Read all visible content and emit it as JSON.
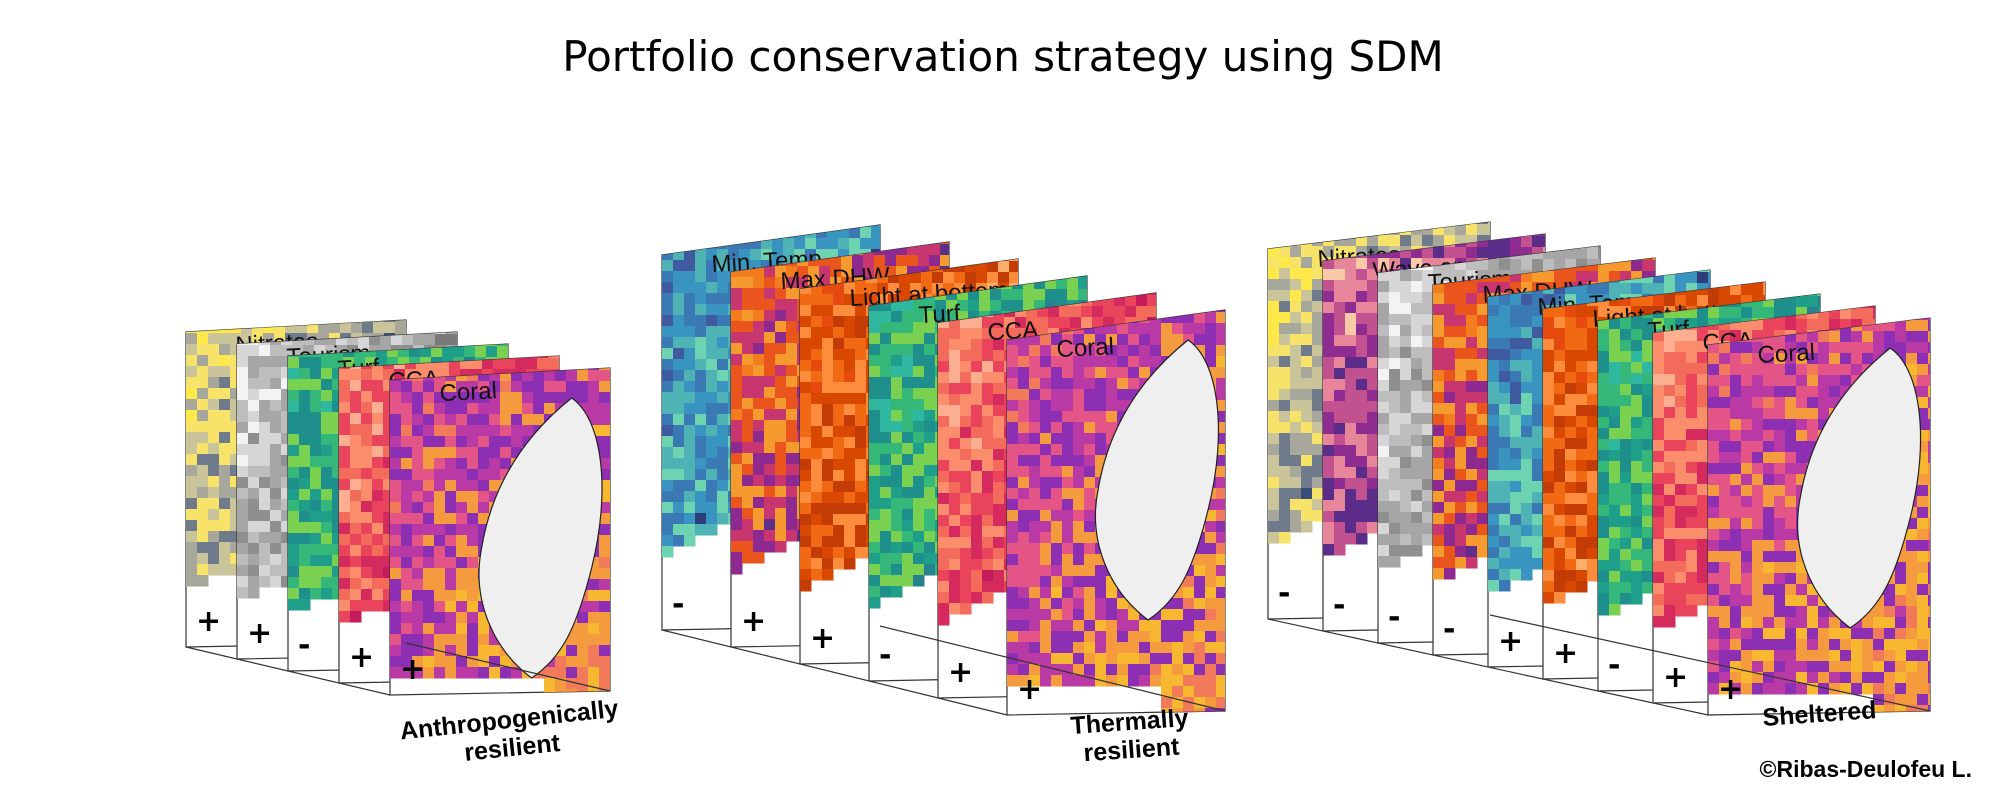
{
  "title": "Portfolio conservation strategy using SDM",
  "credit": "©Ribas-Deulofeu L.",
  "palettes": {
    "Nitrates": [
      "#ffe94a",
      "#f7e36a",
      "#c9c49a",
      "#a8a79c",
      "#6f7a8a",
      "#3a4d78"
    ],
    "Tourism": [
      "#f3f3f3",
      "#d6d6d6",
      "#bdbdbd",
      "#a6a6a6",
      "#8f8f8f",
      "#7a7a7a"
    ],
    "Turf": [
      "#2fb7a0",
      "#1e8f8a",
      "#35b779",
      "#7ad151",
      "#1f9e89",
      "#26828e"
    ],
    "CCA": [
      "#fcae91",
      "#fb8d6c",
      "#f26b5b",
      "#e9445c",
      "#d42a5e",
      "#c31b5b"
    ],
    "Coral": [
      "#f07a5a",
      "#e35487",
      "#b93aa4",
      "#8d2fb3",
      "#f39b3e",
      "#f7b731"
    ],
    "Min. Temp.": [
      "#3f5a9e",
      "#3b79b5",
      "#3a94c0",
      "#4fb3b6",
      "#6dd3b0",
      "#2c3f7a"
    ],
    "Max DHW": [
      "#f27c1e",
      "#e9551d",
      "#f59a2f",
      "#c7366e",
      "#8e2a8f",
      "#5d2f8a"
    ],
    "Light at bottom": [
      "#e64a0f",
      "#f16913",
      "#fd8d3c",
      "#d94801",
      "#c43c05",
      "#fdae6b"
    ],
    "Wave energy": [
      "#f9c9a8",
      "#e7869a",
      "#c2518f",
      "#8e2c8f",
      "#5b2c88",
      "#f6a77f"
    ]
  },
  "groups": [
    {
      "caption": [
        "Anthropogenically",
        "resilient"
      ],
      "layers": [
        {
          "label": "Nitrates",
          "sign": "+"
        },
        {
          "label": "Tourism",
          "sign": "+"
        },
        {
          "label": "Turf",
          "sign": "-"
        },
        {
          "label": "CCA",
          "sign": "+"
        },
        {
          "label": "Coral",
          "sign": "+"
        }
      ]
    },
    {
      "caption": [
        "Thermally",
        "resilient"
      ],
      "layers": [
        {
          "label": "Min. Temp.",
          "sign": "-"
        },
        {
          "label": "Max DHW",
          "sign": "+"
        },
        {
          "label": "Light at bottom",
          "sign": "+"
        },
        {
          "label": "Turf",
          "sign": "-"
        },
        {
          "label": "CCA",
          "sign": "+"
        },
        {
          "label": "Coral",
          "sign": "+"
        }
      ]
    },
    {
      "caption": [
        "Sheltered"
      ],
      "layers": [
        {
          "label": "Nitrates",
          "sign": "-"
        },
        {
          "label": "Wave energy",
          "sign": "-"
        },
        {
          "label": "Tourism",
          "sign": "-"
        },
        {
          "label": "Max DHW",
          "sign": "-"
        },
        {
          "label": "Min. Temp.",
          "sign": "+"
        },
        {
          "label": "Light at bottom",
          "sign": "+"
        },
        {
          "label": "Turf",
          "sign": "-"
        },
        {
          "label": "CCA",
          "sign": "+"
        },
        {
          "label": "Coral",
          "sign": "+"
        }
      ]
    }
  ]
}
